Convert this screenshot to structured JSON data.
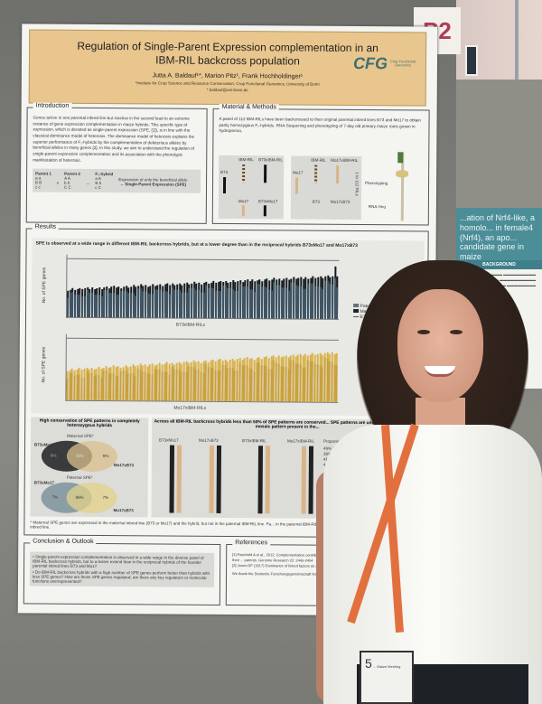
{
  "sign": {
    "label": "P2"
  },
  "poster": {
    "title_line1": "Regulation of Single-Parent Expression complementation in an",
    "title_line2": "IBM-RIL backcross population",
    "authors": "Jutta A. Baldauf¹*, Marion Pitz¹, Frank Hochholdinger¹",
    "institution": "¹Institute for Crop Science and Resource Conservation, Crop Functional Genomics, University of Bonn",
    "email": "* baldauf@uni-bonn.de",
    "logo": {
      "text": "CFG",
      "subtitle": "Crop Functional Genomics"
    },
    "introduction": {
      "title": "Introduction",
      "text": "Genes active in one parental inbred line but inactive in the second lead to an extreme instance of gene expression complementation in maize hybrids. This specific type of expression, which is denoted as single-parent expression (SPE, [1]), is in line with the classical dominance model of heterosis. The dominance model of heterosis explains the superior performance of F₁-hybrids by the complementation of deleterious alleles by beneficial alleles in many genes [2]. In this study, we aim to understand the regulation of single-parent expression complementation and its association with the phenotypic manifestation of heterosis.",
      "parent1": "Parent 1",
      "parent2": "Parent 2",
      "hybrid": "F₁-hybrid",
      "alleles_p1": [
        "a a",
        "B B",
        "c c"
      ],
      "alleles_p2": [
        "A A",
        "b b",
        "C C"
      ],
      "alleles_f1": [
        "a A",
        "B b",
        "c C"
      ],
      "cross_symbol": "x",
      "arrow": "→",
      "expression_note": "Expression of only the beneficial allele",
      "spe_label": "→ Single-Parent Expression (SPE)"
    },
    "methods": {
      "title": "Material & Methods",
      "text": "A panel of 112 IBM-RILs have been backcrossed to their original parental inbred lines B73 and Mo17 to obtain partly homozygous F₁-hybrids. RNA-Sequening and phenotyping of 7-day old primary maize roots grown in hydroponics.",
      "labels": [
        "B73",
        "IBM-RIL",
        "B73xIBM-RIL",
        "Mo17",
        "B73xMo17",
        "Mo17",
        "IBM-RIL",
        "Mo17xIBM-RIL",
        "B73",
        "Mo17xB73"
      ],
      "range": "1 to 112 RILs",
      "phenotyping": "Phenotyping",
      "rnaseq": "RNA-Seq"
    },
    "results": {
      "title": "Results",
      "headline": "SPE is observed at a wide range in different IBM-RIL backcross hybrids, but at a lower degree than in the reciprocal hybrids B73xMo17 and Mo17xB73",
      "ylabel": "No. of SPE genes",
      "yticks": [
        "0",
        "200",
        "400",
        "600",
        "800",
        "1000",
        "1200",
        "1400"
      ],
      "chart1_xlabel": "B73xIBM-RILs",
      "chart2_xlabel": "Mo17xIBM-RILs",
      "legend": [
        "Paternal",
        "Maternal",
        "B73x..."
      ],
      "venn_title": "High conservation of SPE patterns in completely heterozygous hybrids",
      "venn_maternal": "Maternal SPE*",
      "venn_paternal": "Paternal SPE*",
      "venn_b73": "B73xMo17",
      "venn_mo17": "Mo17xB73",
      "venn_maternal_values": [
        "6%",
        "88%",
        "6%"
      ],
      "venn_paternal_values": [
        "7%",
        "86%",
        "7%"
      ],
      "pattern_title": "Across all IBM-RIL backcross hybrids less than 50% of SPE patterns are conserved... SPE patterns are unique to specific IBM-RIL mosaic pattern present in the...",
      "pattern_cols": [
        "B73xMo17",
        "Mo17xB73",
        "B73xIBM-RIL",
        "Mo17xIBM-RIL"
      ],
      "proportion_label": "Proportion",
      "proportions": [
        "49% (\"B...",
        "39% (\"M...",
        "41% (\"B...",
        "45% (\"..."
      ],
      "range_label": "4-18%",
      "footnote": "* Maternal SPE genes are expressed in the maternal inbred line (B73 or Mo17) and the hybrid, but not in the paternal IBM-RIL line. Pa... in the paternal IBM-RIL line and the hybrid, but not in the corresponding maternal inbred line."
    },
    "conclusion": {
      "title": "Conclusion & Outlook",
      "items": [
        "• Single-parent expression complementation is observed in a wide range in the diverse panel of IBM-RIL backcross hybrids, but to a lesser extend than in the reciprocal hybrids of the founder parental inbred lines B73 and Mo17.",
        "• Do IBM-RIL backcross hybrids with a high number of SPE genes perform better than hybrids with less SPE genes? How are those SPE genes regulated, are there any key regulators or molecular functions overrepresented?"
      ]
    },
    "references": {
      "title": "References",
      "items": [
        "[1] Paschold A et al., 2012. Complementation contributes to ... complexity in maize (Zea mays L.) hybrids relative to their ... parents. Genome Research 22: 2445-2454",
        "[2] Jones DF (1917) Dominance of linked factors as a mea... ing for heterosis. Genetics 2: 466-479"
      ],
      "ack": "We thank the Deutsche Forschungsgemeinschaft for f... project under grant agreement HO2249/18-1"
    }
  },
  "poster2": {
    "title": "...ation of Nrf4-like, a homolo... in female4 (Nrf4), an apo... candidate gene in maize",
    "section": "BACKGROUND"
  },
  "badge": {
    "number": "5",
    "text": "... Maize Meeting"
  },
  "colors": {
    "banner": "#e9c68d",
    "maternal": "#1f252a",
    "paternal": "#5f7380",
    "mo17_bar": "#d9b24a",
    "lanyard": "#e2703f",
    "poster2_header": "#4c8e98"
  }
}
